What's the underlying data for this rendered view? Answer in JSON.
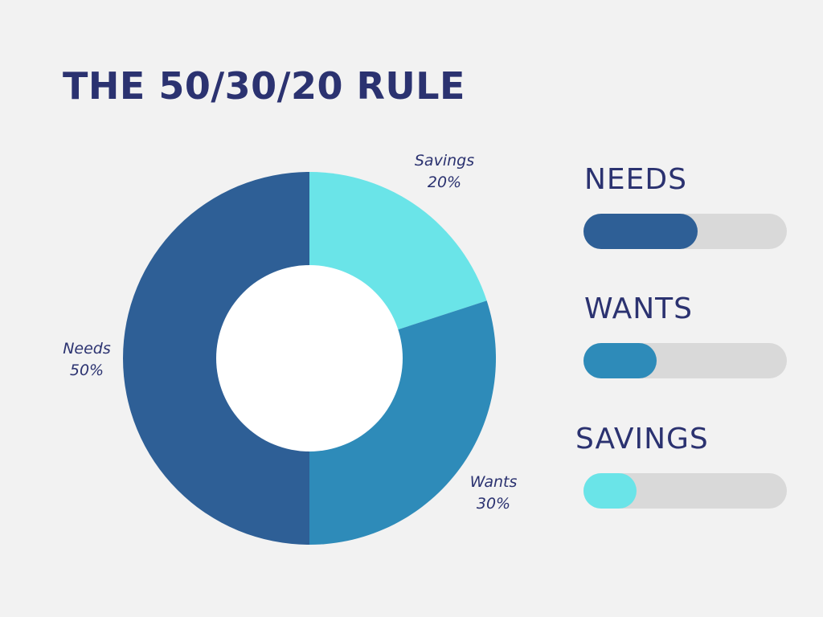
{
  "title": "THE 50/30/20 RULE",
  "colors": {
    "background": "#f2f2f2",
    "text": "#2b3270",
    "track": "#d9d9d9",
    "hole": "#ffffff"
  },
  "chart_data": [
    {
      "type": "pie",
      "variant": "donut",
      "slices": [
        {
          "name": "Savings",
          "value": 20,
          "label": "20%",
          "color": "#6ae4e8"
        },
        {
          "name": "Wants",
          "value": 30,
          "label": "30%",
          "color": "#2e8bb9"
        },
        {
          "name": "Needs",
          "value": 50,
          "label": "50%",
          "color": "#2e5f96"
        }
      ]
    },
    {
      "type": "bar",
      "orientation": "horizontal",
      "categories": [
        "NEEDS",
        "WANTS",
        "SAVINGS"
      ],
      "values": [
        50,
        30,
        20
      ],
      "colors": [
        "#2e5f96",
        "#2e8bb9",
        "#6ae4e8"
      ],
      "xlim": [
        0,
        100
      ]
    }
  ]
}
